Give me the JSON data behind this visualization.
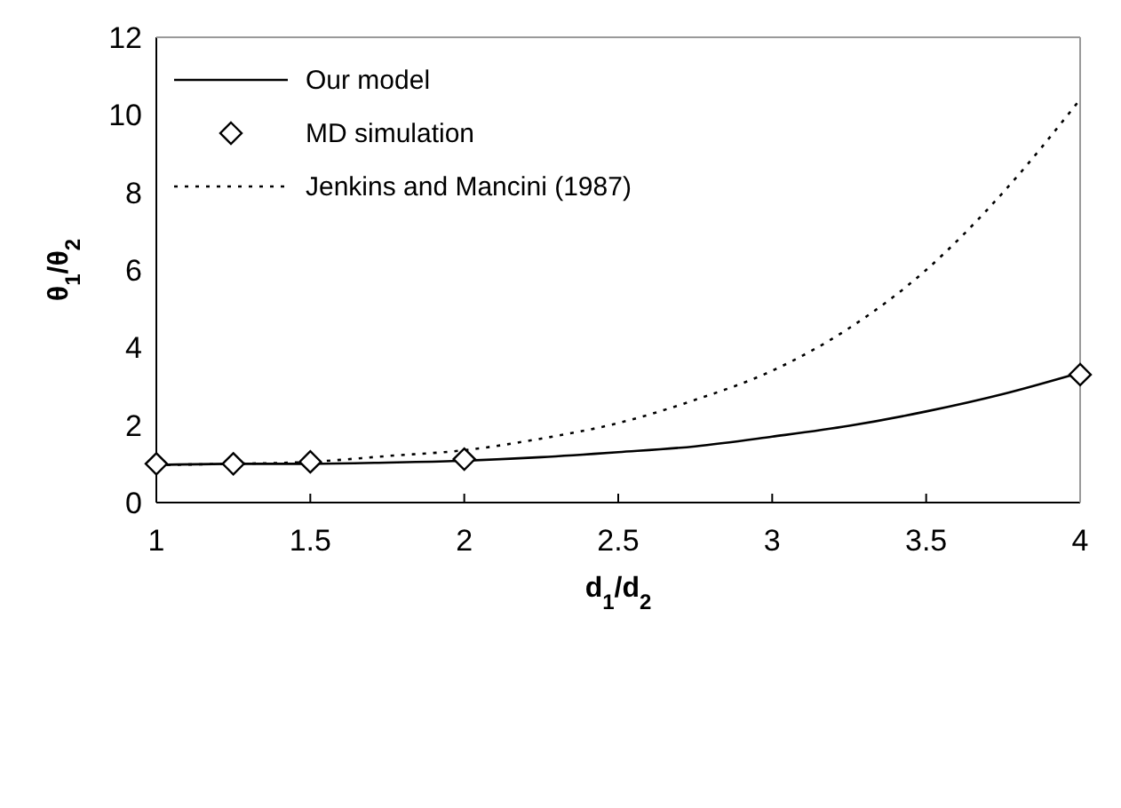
{
  "chart_data": {
    "type": "line",
    "xlabel": "d$_{1}$/d$_{2}$",
    "ylabel": "θ$_{1}$/θ$_{2}$",
    "xlim": [
      1,
      4
    ],
    "xticks": [
      1,
      1.5,
      2,
      2.5,
      3,
      3.5,
      4
    ],
    "ylim": [
      0,
      12
    ],
    "yticks": [
      0,
      2,
      4,
      6,
      8,
      10,
      12
    ],
    "grid": false,
    "legend": "top left",
    "series": [
      {
        "name": "Our model",
        "color": "#000000",
        "marker": "none",
        "line_style": "solid",
        "x": [
          1,
          1.25,
          1.5,
          1.75,
          2,
          2.25,
          2.5,
          2.75,
          3,
          3.25,
          3.5,
          3.75,
          4
        ],
        "values": [
          0.97,
          1.0,
          1.0,
          1.03,
          1.08,
          1.17,
          1.3,
          1.45,
          1.7,
          1.98,
          2.35,
          2.8,
          3.35
        ]
      },
      {
        "name": "MD simulation",
        "color": "#000000",
        "type": "scatter",
        "marker": "diamond",
        "x": [
          1,
          1.25,
          1.5,
          2,
          4
        ],
        "values": [
          1.0,
          1.0,
          1.05,
          1.12,
          3.3
        ]
      },
      {
        "name": "Jenkins and Mancini (1987)",
        "color": "#000000",
        "marker": "none",
        "line_style": "dotted",
        "x": [
          1,
          1.25,
          1.5,
          1.75,
          2,
          2.25,
          2.5,
          2.75,
          3,
          3.25,
          3.5,
          3.75,
          4
        ],
        "values": [
          0.97,
          1.0,
          1.05,
          1.2,
          1.35,
          1.65,
          2.05,
          2.65,
          3.4,
          4.5,
          6.0,
          8.0,
          10.4
        ]
      }
    ]
  }
}
